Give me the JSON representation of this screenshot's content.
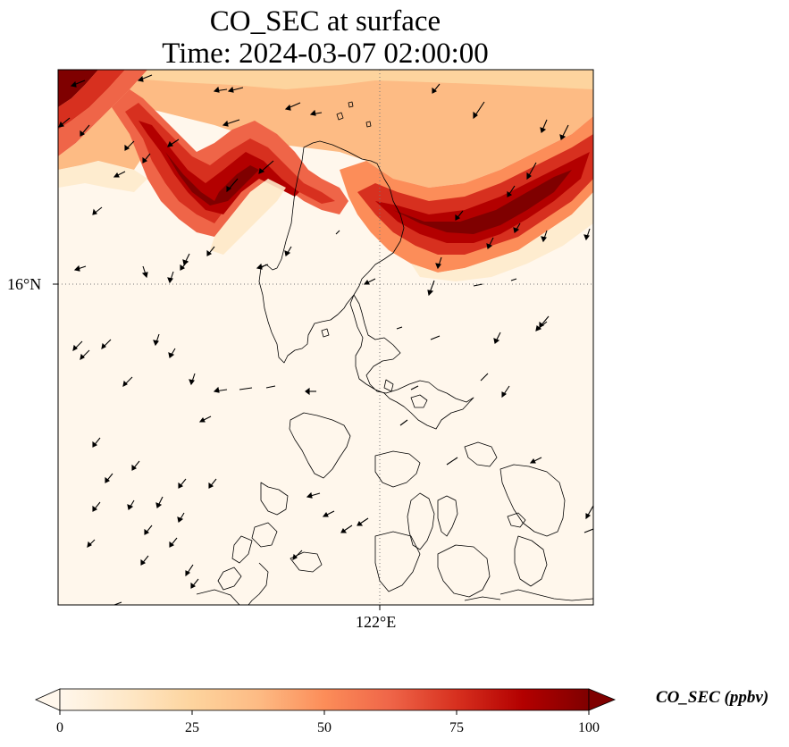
{
  "title": {
    "line1": "CO_SEC at surface",
    "line2": "Time: 2024-03-07 02:00:00"
  },
  "axes": {
    "lat_label": "16°N",
    "lon_label": "122°E"
  },
  "colorbar": {
    "label": "CO_SEC (ppbv)",
    "ticks": [
      "0",
      "25",
      "50",
      "75",
      "100"
    ],
    "range": [
      0,
      100
    ],
    "colormap": "OrRd",
    "extend": "both",
    "colors": [
      "#fff7ec",
      "#fee8c8",
      "#fdd49e",
      "#fdbb84",
      "#fc8d59",
      "#ef6548",
      "#d7301f",
      "#b30000",
      "#7f0000"
    ]
  },
  "map": {
    "projection": "lat-lon",
    "gridlines": "dotted",
    "coastlines": true,
    "wind_vectors": true
  }
}
